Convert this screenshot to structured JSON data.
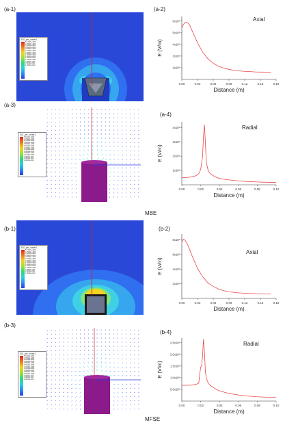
{
  "sections": [
    {
      "group_label": "MBE",
      "panels": {
        "field": {
          "label": "(a-1)",
          "legend_title": "EIS_per_meter1",
          "legend_ticks": [
            "5.1000e+000",
            "4.7000e+000",
            "4.3000e+000",
            "3.9000e+000",
            "3.5000e+000",
            "3.1000e+000",
            "2.7000e+000",
            "2.3000e+000",
            "1.9000e+000",
            "1.5000e+000",
            "1.1000e+000",
            "7.0000e-001",
            "3.0000e-001",
            "1.0000e-002"
          ]
        },
        "axial_chart": {
          "label": "(a-2)",
          "annotation": "Axial"
        },
        "vector": {
          "label": "(a-3)",
          "legend_title": "EIS_per_meter1",
          "legend_ticks": [
            "5.1000e+000",
            "4.7000e+000",
            "4.3000e+000",
            "3.9000e+000",
            "3.5000e+000",
            "3.1000e+000",
            "2.7000e+000",
            "2.3000e+000",
            "1.9000e+000",
            "1.5000e+000",
            "1.1000e+000",
            "7.0000e-001",
            "3.0000e-001",
            "1.0000e-002"
          ]
        },
        "radial_chart": {
          "label": "(a-4)",
          "annotation": "Radial"
        }
      }
    },
    {
      "group_label": "MFSE",
      "panels": {
        "field": {
          "label": "(b-1)",
          "legend_title": "EIS_per_meter1",
          "legend_ticks": [
            "5.1000e+000",
            "4.7000e+000",
            "4.3000e+000",
            "3.9000e+000",
            "3.5000e+000",
            "3.1000e+000",
            "2.7000e+000",
            "2.3000e+000",
            "1.9000e+000",
            "1.5000e+000",
            "1.1000e+000",
            "7.0000e-001",
            "3.0000e-001",
            "1.0000e-002"
          ]
        },
        "axial_chart": {
          "label": "(b-2)",
          "annotation": "Axial"
        },
        "vector": {
          "label": "(b-3)",
          "legend_title": "EIS_per_meter1",
          "legend_ticks": [
            "5.1000e+000",
            "4.7000e+000",
            "4.3000e+000",
            "3.9000e+000",
            "3.5000e+000",
            "3.1000e+000",
            "2.7000e+000",
            "2.3000e+000",
            "1.9000e+000",
            "1.5000e+000",
            "1.1000e+000",
            "7.0000e-001",
            "3.0000e-001",
            "1.0000e-002"
          ]
        },
        "radial_chart": {
          "label": "(b-4)",
          "annotation": "Radial"
        }
      }
    }
  ],
  "colors": {
    "field_background": "#2a48d8",
    "cylinder": "#8b1a8b",
    "curve": "#e8474a",
    "axis_marker": "#d0202a"
  },
  "chart_data": [
    {
      "type": "line",
      "id": "a-2",
      "xlabel": "Distance (m)",
      "ylabel": "E (V/m)",
      "x_ticks": [
        "0.00",
        "0.03",
        "0.06",
        "0.09",
        "0.12",
        "0.15",
        "0.18"
      ],
      "y_ticks": [
        "2x10³",
        "3x10³",
        "4x10³",
        "5x10³",
        "6x10³"
      ],
      "xlim": [
        0,
        0.18
      ],
      "ylim": [
        2000,
        6300
      ],
      "series": [
        {
          "x": [
            0,
            0.003,
            0.006,
            0.009,
            0.012,
            0.015,
            0.02,
            0.03,
            0.04,
            0.05,
            0.06,
            0.07,
            0.08,
            0.09,
            0.1,
            0.11,
            0.12,
            0.13,
            0.14,
            0.15,
            0.16,
            0.17
          ],
          "y": [
            5500,
            5750,
            5880,
            5900,
            5850,
            5700,
            5300,
            4500,
            3850,
            3400,
            3100,
            2900,
            2770,
            2680,
            2620,
            2580,
            2550,
            2530,
            2510,
            2500,
            2495,
            2490
          ]
        }
      ]
    },
    {
      "type": "line",
      "id": "a-4",
      "xlabel": "Distance (m)",
      "ylabel": "E (V/m)",
      "x_ticks": [
        "0.00",
        "0.02",
        "0.04",
        "0.06",
        "0.08",
        "0.10"
      ],
      "y_ticks": [
        "1x10³",
        "2x10³",
        "3x10³",
        "4x10³"
      ],
      "xlim": [
        0,
        0.1
      ],
      "ylim": [
        0,
        4500
      ],
      "series": [
        {
          "x": [
            0,
            0.005,
            0.01,
            0.015,
            0.018,
            0.02,
            0.022,
            0.023,
            0.024,
            0.025,
            0.026,
            0.028,
            0.03,
            0.035,
            0.04,
            0.05,
            0.06,
            0.07,
            0.08,
            0.09,
            0.1
          ],
          "y": [
            500,
            520,
            560,
            650,
            800,
            1100,
            2000,
            3500,
            4300,
            3000,
            1600,
            1000,
            800,
            580,
            450,
            350,
            280,
            230,
            200,
            180,
            170
          ]
        }
      ]
    },
    {
      "type": "line",
      "id": "b-2",
      "xlabel": "Distance (m)",
      "ylabel": "E (V/m)",
      "x_ticks": [
        "0.00",
        "0.03",
        "0.06",
        "0.09",
        "0.12",
        "0.15",
        "0.18"
      ],
      "y_ticks": [
        "2x10³",
        "4x10³",
        "6x10³",
        "8x10³"
      ],
      "xlim": [
        0,
        0.18
      ],
      "ylim": [
        2000,
        9500
      ],
      "series": [
        {
          "x": [
            0,
            0.003,
            0.006,
            0.01,
            0.015,
            0.02,
            0.03,
            0.04,
            0.05,
            0.06,
            0.07,
            0.08,
            0.09,
            0.1,
            0.11,
            0.12,
            0.13,
            0.14,
            0.15,
            0.16,
            0.17
          ],
          "y": [
            8600,
            8900,
            8800,
            8400,
            7700,
            6900,
            5500,
            4500,
            3800,
            3400,
            3100,
            2900,
            2780,
            2700,
            2640,
            2600,
            2570,
            2550,
            2540,
            2530,
            2520
          ]
        }
      ]
    },
    {
      "type": "line",
      "id": "b-4",
      "xlabel": "Distance (m)",
      "ylabel": "E (V/m)",
      "x_ticks": [
        "0.00",
        "0.02",
        "0.04",
        "0.06",
        "0.08",
        "0.10"
      ],
      "y_ticks": [
        "5.0x10²",
        "1.0x10³",
        "1.5x10³",
        "2.0x10³",
        "2.5x10³"
      ],
      "xlim": [
        0,
        0.1
      ],
      "ylim": [
        0,
        2800
      ],
      "series": [
        {
          "x": [
            0,
            0.005,
            0.01,
            0.015,
            0.018,
            0.019,
            0.02,
            0.021,
            0.022,
            0.023,
            0.024,
            0.025,
            0.026,
            0.028,
            0.03,
            0.035,
            0.04,
            0.05,
            0.06,
            0.07,
            0.08,
            0.09,
            0.1
          ],
          "y": [
            700,
            700,
            710,
            740,
            800,
            1200,
            1500,
            1550,
            2000,
            2750,
            2200,
            1300,
            1000,
            800,
            700,
            560,
            450,
            340,
            270,
            220,
            190,
            170,
            160
          ]
        }
      ]
    }
  ]
}
